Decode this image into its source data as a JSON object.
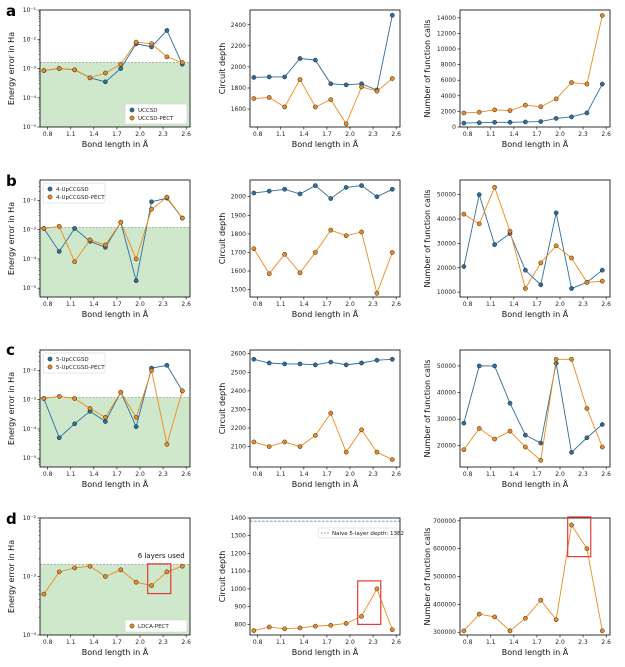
{
  "colors": {
    "blue": "#2c6e9e",
    "orange": "#ee8a1c",
    "green_fill": "#cfe8cc",
    "naive_line": "#4f93c9",
    "highlight": "#e53935"
  },
  "bond_ticks": [
    "0.8",
    "1.1",
    "1.4",
    "1.7",
    "2.0",
    "2.3",
    "2.6"
  ],
  "xlabel": "Bond length in Å",
  "chart_data": [
    {
      "panel": "a",
      "type": "line",
      "scale": "log",
      "ylabel": "Energy error in Ha",
      "ylim": [
        1e-05,
        0.1
      ],
      "threshold": 0.0016,
      "yticks": [
        {
          "v": 0.1,
          "t": "10⁻¹"
        },
        {
          "v": 0.01,
          "t": "10⁻²"
        },
        {
          "v": 0.001,
          "t": "10⁻³"
        },
        {
          "v": 0.0001,
          "t": "10⁻⁴"
        },
        {
          "v": 1e-05,
          "t": "10⁻⁵"
        }
      ],
      "legend": "bottom-right",
      "x": [
        0.75,
        0.95,
        1.15,
        1.35,
        1.55,
        1.75,
        1.95,
        2.15,
        2.35,
        2.55
      ],
      "series": [
        {
          "name": "UCCSD",
          "color": "blue",
          "values": [
            0.00085,
            0.001,
            0.0009,
            0.00048,
            0.00035,
            0.001,
            0.007,
            0.0055,
            0.02,
            0.0014
          ]
        },
        {
          "name": "UCCSD-PECT",
          "color": "orange",
          "values": [
            0.00085,
            0.001,
            0.0009,
            0.00048,
            0.0007,
            0.0014,
            0.008,
            0.007,
            0.0025,
            0.0016
          ]
        }
      ]
    },
    {
      "panel": "a",
      "type": "line",
      "scale": "linear",
      "ylabel": "Circuit depth",
      "ylim": [
        1430,
        2540
      ],
      "yticks": [
        {
          "v": 1600,
          "t": "1600"
        },
        {
          "v": 1800,
          "t": "1800"
        },
        {
          "v": 2000,
          "t": "2000"
        },
        {
          "v": 2200,
          "t": "2200"
        },
        {
          "v": 2400,
          "t": "2400"
        }
      ],
      "x": [
        0.75,
        0.95,
        1.15,
        1.35,
        1.55,
        1.75,
        1.95,
        2.15,
        2.35,
        2.55
      ],
      "series": [
        {
          "name": "UCCSD",
          "color": "blue",
          "values": [
            1900,
            1905,
            1905,
            2080,
            2065,
            1840,
            1830,
            1840,
            1780,
            2490
          ]
        },
        {
          "name": "UCCSD-PECT",
          "color": "orange",
          "values": [
            1700,
            1710,
            1620,
            1880,
            1620,
            1690,
            1460,
            1810,
            1770,
            1890
          ]
        }
      ]
    },
    {
      "panel": "a",
      "type": "line",
      "scale": "linear",
      "ylabel": "Number of function calls",
      "ylim": [
        0,
        15000
      ],
      "yticks": [
        {
          "v": 0,
          "t": "0"
        },
        {
          "v": 2000,
          "t": "2000"
        },
        {
          "v": 4000,
          "t": "4000"
        },
        {
          "v": 6000,
          "t": "6000"
        },
        {
          "v": 8000,
          "t": "8000"
        },
        {
          "v": 10000,
          "t": "10000"
        },
        {
          "v": 12000,
          "t": "12000"
        },
        {
          "v": 14000,
          "t": "14000"
        }
      ],
      "x": [
        0.75,
        0.95,
        1.15,
        1.35,
        1.55,
        1.75,
        1.95,
        2.15,
        2.35,
        2.55
      ],
      "series": [
        {
          "name": "UCCSD",
          "color": "blue",
          "values": [
            500,
            550,
            600,
            600,
            650,
            700,
            1100,
            1300,
            1800,
            5500
          ]
        },
        {
          "name": "UCCSD-PECT",
          "color": "orange",
          "values": [
            1800,
            1900,
            2200,
            2100,
            2800,
            2600,
            3600,
            5700,
            5500,
            14300
          ]
        }
      ]
    },
    {
      "panel": "b",
      "type": "line",
      "scale": "log",
      "ylabel": "Energy error in Ha",
      "ylim": [
        5e-06,
        0.05
      ],
      "threshold": 0.0012,
      "yticks": [
        {
          "v": 0.01,
          "t": "10⁻²"
        },
        {
          "v": 0.001,
          "t": "10⁻³"
        },
        {
          "v": 0.0001,
          "t": "10⁻⁴"
        },
        {
          "v": 1e-05,
          "t": "10⁻⁵"
        }
      ],
      "legend": "top-left",
      "x": [
        0.75,
        0.95,
        1.15,
        1.35,
        1.55,
        1.75,
        1.95,
        2.15,
        2.35,
        2.55
      ],
      "series": [
        {
          "name": "4-UpCCGSD",
          "color": "blue",
          "values": [
            0.0011,
            0.00018,
            0.0011,
            0.0004,
            0.00025,
            0.0018,
            1.8e-05,
            0.009,
            0.012,
            0.0025
          ]
        },
        {
          "name": "4-UpCCGSD-PECT",
          "color": "orange",
          "values": [
            0.0011,
            0.0013,
            8e-05,
            0.00045,
            0.0003,
            0.0018,
            0.0001,
            0.005,
            0.013,
            0.0025
          ]
        }
      ]
    },
    {
      "panel": "b",
      "type": "line",
      "scale": "linear",
      "ylabel": "Circuit depth",
      "ylim": [
        1460,
        2090
      ],
      "yticks": [
        {
          "v": 1500,
          "t": "1500"
        },
        {
          "v": 1600,
          "t": "1600"
        },
        {
          "v": 1700,
          "t": "1700"
        },
        {
          "v": 1800,
          "t": "1800"
        },
        {
          "v": 1900,
          "t": "1900"
        },
        {
          "v": 2000,
          "t": "2000"
        }
      ],
      "x": [
        0.75,
        0.95,
        1.15,
        1.35,
        1.55,
        1.75,
        1.95,
        2.15,
        2.35,
        2.55
      ],
      "series": [
        {
          "name": "4-UpCCGSD",
          "color": "blue",
          "values": [
            2020,
            2030,
            2040,
            2015,
            2060,
            1990,
            2050,
            2060,
            2000,
            2040
          ]
        },
        {
          "name": "4-UpCCGSD-PECT",
          "color": "orange",
          "values": [
            1720,
            1585,
            1690,
            1590,
            1700,
            1820,
            1790,
            1810,
            1480,
            1700
          ]
        }
      ]
    },
    {
      "panel": "b",
      "type": "line",
      "scale": "linear",
      "ylabel": "Number of function calls",
      "ylim": [
        8000,
        56000
      ],
      "yticks": [
        {
          "v": 10000,
          "t": "10000"
        },
        {
          "v": 20000,
          "t": "20000"
        },
        {
          "v": 30000,
          "t": "30000"
        },
        {
          "v": 40000,
          "t": "40000"
        },
        {
          "v": 50000,
          "t": "50000"
        }
      ],
      "x": [
        0.75,
        0.95,
        1.15,
        1.35,
        1.55,
        1.75,
        1.95,
        2.15,
        2.35,
        2.55
      ],
      "series": [
        {
          "name": "4-UpCCGSD",
          "color": "blue",
          "values": [
            20500,
            50000,
            29500,
            34000,
            19000,
            13000,
            42500,
            11500,
            14000,
            19000
          ]
        },
        {
          "name": "4-UpCCGSD-PECT",
          "color": "orange",
          "values": [
            42000,
            38000,
            53000,
            35000,
            11500,
            22000,
            29000,
            24000,
            14000,
            14500
          ]
        }
      ]
    },
    {
      "panel": "c",
      "type": "line",
      "scale": "log",
      "ylabel": "Energy error in Ha",
      "ylim": [
        5e-06,
        0.05
      ],
      "threshold": 0.0012,
      "yticks": [
        {
          "v": 0.01,
          "t": "10⁻²"
        },
        {
          "v": 0.001,
          "t": "10⁻³"
        },
        {
          "v": 0.0001,
          "t": "10⁻⁴"
        },
        {
          "v": 1e-05,
          "t": "10⁻⁵"
        }
      ],
      "legend": "top-left",
      "x": [
        0.75,
        0.95,
        1.15,
        1.35,
        1.55,
        1.75,
        1.95,
        2.15,
        2.35,
        2.55
      ],
      "series": [
        {
          "name": "5-UpCCGSD",
          "color": "blue",
          "values": [
            0.0011,
            5e-05,
            0.00015,
            0.0004,
            0.00018,
            0.0018,
            0.00012,
            0.012,
            0.015,
            0.002
          ]
        },
        {
          "name": "5-UpCCGSD-PECT",
          "color": "orange",
          "values": [
            0.0011,
            0.0013,
            0.0011,
            0.0005,
            0.00025,
            0.0018,
            0.00025,
            0.01,
            3e-05,
            0.002
          ]
        }
      ]
    },
    {
      "panel": "c",
      "type": "line",
      "scale": "linear",
      "ylabel": "Circuit depth",
      "ylim": [
        1990,
        2620
      ],
      "yticks": [
        {
          "v": 2100,
          "t": "2100"
        },
        {
          "v": 2200,
          "t": "2200"
        },
        {
          "v": 2300,
          "t": "2300"
        },
        {
          "v": 2400,
          "t": "2400"
        },
        {
          "v": 2500,
          "t": "2500"
        },
        {
          "v": 2600,
          "t": "2600"
        }
      ],
      "x": [
        0.75,
        0.95,
        1.15,
        1.35,
        1.55,
        1.75,
        1.95,
        2.15,
        2.35,
        2.55
      ],
      "series": [
        {
          "name": "5-UpCCGSD",
          "color": "blue",
          "values": [
            2570,
            2550,
            2545,
            2545,
            2540,
            2555,
            2540,
            2550,
            2565,
            2570
          ]
        },
        {
          "name": "5-UpCCGSD-PECT",
          "color": "orange",
          "values": [
            2125,
            2100,
            2125,
            2100,
            2160,
            2280,
            2070,
            2190,
            2070,
            2030
          ]
        }
      ]
    },
    {
      "panel": "c",
      "type": "line",
      "scale": "linear",
      "ylabel": "Number of function calls",
      "ylim": [
        12000,
        56000
      ],
      "yticks": [
        {
          "v": 20000,
          "t": "20000"
        },
        {
          "v": 30000,
          "t": "30000"
        },
        {
          "v": 40000,
          "t": "40000"
        },
        {
          "v": 50000,
          "t": "50000"
        }
      ],
      "x": [
        0.75,
        0.95,
        1.15,
        1.35,
        1.55,
        1.75,
        1.95,
        2.15,
        2.35,
        2.55
      ],
      "series": [
        {
          "name": "5-UpCCGSD",
          "color": "blue",
          "values": [
            28500,
            50000,
            50000,
            36000,
            24000,
            21000,
            51000,
            17500,
            23000,
            28000
          ]
        },
        {
          "name": "5-UpCCGSD-PECT",
          "color": "orange",
          "values": [
            18500,
            26500,
            22500,
            25500,
            19500,
            14500,
            52500,
            52500,
            34000,
            19500
          ]
        }
      ]
    },
    {
      "panel": "d",
      "type": "line",
      "scale": "log",
      "ylabel": "Energy error in Ha",
      "ylim": [
        0.0001,
        0.01
      ],
      "threshold": 0.0016,
      "yticks": [
        {
          "v": 0.01,
          "t": "10⁻²"
        },
        {
          "v": 0.001,
          "t": "10⁻³"
        },
        {
          "v": 0.0001,
          "t": "10⁻⁴"
        }
      ],
      "legend": "bottom-right",
      "annotation": "6 layers used",
      "highlight": [
        2.1,
        2.4
      ],
      "x": [
        0.75,
        0.95,
        1.15,
        1.35,
        1.55,
        1.75,
        1.95,
        2.15,
        2.35,
        2.55
      ],
      "series": [
        {
          "name": "LDCA-PECT",
          "color": "orange",
          "values": [
            0.0005,
            0.0012,
            0.0014,
            0.0015,
            0.001,
            0.0013,
            0.0008,
            0.0007,
            0.0012,
            0.0015
          ]
        }
      ]
    },
    {
      "panel": "d",
      "type": "line",
      "scale": "linear",
      "ylabel": "Circuit depth",
      "ylim": [
        740,
        1400
      ],
      "naive": 1382,
      "naive_label": "Naive 5-layer depth: 1382",
      "highlight": [
        2.1,
        2.4
      ],
      "yticks": [
        {
          "v": 800,
          "t": "800"
        },
        {
          "v": 900,
          "t": "900"
        },
        {
          "v": 1000,
          "t": "1000"
        },
        {
          "v": 1100,
          "t": "1100"
        },
        {
          "v": 1200,
          "t": "1200"
        },
        {
          "v": 1300,
          "t": "1300"
        },
        {
          "v": 1400,
          "t": "1400"
        }
      ],
      "x": [
        0.75,
        0.95,
        1.15,
        1.35,
        1.55,
        1.75,
        1.95,
        2.15,
        2.35,
        2.55
      ],
      "series": [
        {
          "name": "LDCA-PECT",
          "color": "orange",
          "values": [
            765,
            785,
            775,
            780,
            790,
            795,
            805,
            845,
            1000,
            770
          ]
        }
      ]
    },
    {
      "panel": "d",
      "type": "line",
      "scale": "linear",
      "ylabel": "Number of function calls",
      "ylim": [
        290000,
        710000
      ],
      "highlight": [
        2.1,
        2.4
      ],
      "yticks": [
        {
          "v": 300000,
          "t": "300000"
        },
        {
          "v": 400000,
          "t": "400000"
        },
        {
          "v": 500000,
          "t": "500000"
        },
        {
          "v": 600000,
          "t": "600000"
        },
        {
          "v": 700000,
          "t": "700000"
        }
      ],
      "x": [
        0.75,
        0.95,
        1.15,
        1.35,
        1.55,
        1.75,
        1.95,
        2.15,
        2.35,
        2.55
      ],
      "series": [
        {
          "name": "LDCA-PECT",
          "color": "orange",
          "values": [
            305000,
            365000,
            355000,
            305000,
            350000,
            415000,
            345000,
            685000,
            600000,
            305000
          ]
        }
      ]
    }
  ]
}
